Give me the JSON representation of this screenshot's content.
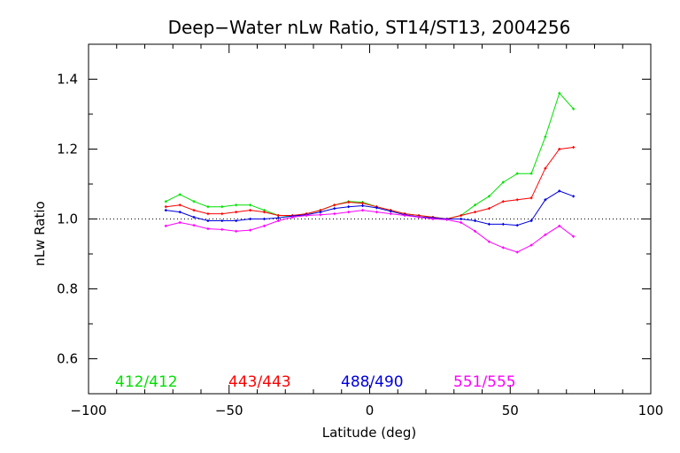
{
  "chart_data": {
    "type": "line",
    "title": "Deep−Water nLw Ratio, ST14/ST13, 2004256",
    "xlabel": "Latitude (deg)",
    "ylabel": "nLw Ratio",
    "xlim": [
      -100,
      100
    ],
    "ylim": [
      0.5,
      1.5
    ],
    "xticks": [
      -100,
      -50,
      0,
      50,
      100
    ],
    "xtick_labels": [
      "−100",
      "−50",
      "0",
      "50",
      "100"
    ],
    "yticks": [
      0.6,
      0.8,
      1.0,
      1.2,
      1.4
    ],
    "ytick_labels": [
      "0.6",
      "0.8",
      "1.0",
      "1.2",
      "1.4"
    ],
    "reference_line": 1.0,
    "grid": false,
    "legend_placement": "bottom",
    "x": [
      -72.5,
      -67.5,
      -62.5,
      -57.5,
      -52.5,
      -47.5,
      -42.5,
      -37.5,
      -32.5,
      -27.5,
      -22.5,
      -17.5,
      -12.5,
      -7.5,
      -2.5,
      2.5,
      7.5,
      12.5,
      17.5,
      22.5,
      27.5,
      32.5,
      37.5,
      42.5,
      47.5,
      52.5,
      57.5,
      62.5,
      67.5,
      72.5
    ],
    "series": [
      {
        "name": "412/412",
        "color": "#00e000",
        "values": [
          1.05,
          1.07,
          1.05,
          1.035,
          1.035,
          1.04,
          1.04,
          1.025,
          1.01,
          1.008,
          1.015,
          1.025,
          1.04,
          1.05,
          1.048,
          1.035,
          1.025,
          1.015,
          1.01,
          1.005,
          1.0,
          1.01,
          1.04,
          1.065,
          1.105,
          1.13,
          1.13,
          1.235,
          1.36,
          1.315
        ]
      },
      {
        "name": "443/443",
        "color": "#ff0000",
        "values": [
          1.035,
          1.04,
          1.025,
          1.015,
          1.015,
          1.02,
          1.025,
          1.02,
          1.01,
          1.01,
          1.015,
          1.025,
          1.04,
          1.048,
          1.045,
          1.035,
          1.025,
          1.015,
          1.01,
          1.005,
          1.0,
          1.01,
          1.02,
          1.03,
          1.05,
          1.055,
          1.06,
          1.145,
          1.2,
          1.205
        ]
      },
      {
        "name": "488/490",
        "color": "#0000dd",
        "values": [
          1.025,
          1.02,
          1.005,
          0.995,
          0.995,
          0.995,
          1.0,
          1.0,
          1.003,
          1.008,
          1.012,
          1.02,
          1.03,
          1.035,
          1.038,
          1.032,
          1.022,
          1.012,
          1.006,
          1.003,
          1.0,
          1.0,
          0.995,
          0.985,
          0.985,
          0.982,
          0.995,
          1.055,
          1.08,
          1.065
        ]
      },
      {
        "name": "551/555",
        "color": "#ff00ff",
        "values": [
          0.98,
          0.99,
          0.982,
          0.972,
          0.97,
          0.965,
          0.968,
          0.98,
          0.995,
          1.005,
          1.01,
          1.012,
          1.015,
          1.02,
          1.025,
          1.02,
          1.015,
          1.01,
          1.005,
          1.0,
          0.998,
          0.99,
          0.965,
          0.935,
          0.918,
          0.905,
          0.925,
          0.955,
          0.98,
          0.95
        ]
      }
    ]
  }
}
